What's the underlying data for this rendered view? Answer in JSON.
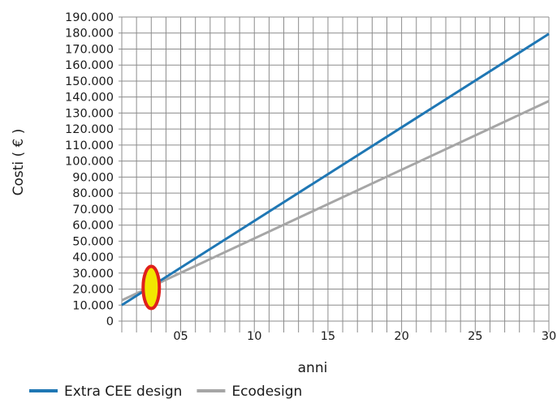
{
  "chart_data": {
    "type": "line",
    "title": "",
    "xlabel": "anni",
    "ylabel": "Costi ( € )",
    "xlim": [
      1,
      30
    ],
    "ylim": [
      0,
      190000
    ],
    "x_ticks": [
      {
        "value": 5,
        "label": "05"
      },
      {
        "value": 10,
        "label": "10"
      },
      {
        "value": 15,
        "label": "15"
      },
      {
        "value": 20,
        "label": "20"
      },
      {
        "value": 25,
        "label": "25"
      },
      {
        "value": 30,
        "label": "30"
      }
    ],
    "y_ticks": [
      {
        "value": 0,
        "label": "0"
      },
      {
        "value": 10000,
        "label": "10.000"
      },
      {
        "value": 20000,
        "label": "20.000"
      },
      {
        "value": 30000,
        "label": "30.000"
      },
      {
        "value": 40000,
        "label": "40.000"
      },
      {
        "value": 50000,
        "label": "50.000"
      },
      {
        "value": 60000,
        "label": "60.000"
      },
      {
        "value": 70000,
        "label": "70.000"
      },
      {
        "value": 80000,
        "label": "80.000"
      },
      {
        "value": 90000,
        "label": "90.000"
      },
      {
        "value": 100000,
        "label": "100.000"
      },
      {
        "value": 110000,
        "label": "110.000"
      },
      {
        "value": 120000,
        "label": "120.000"
      },
      {
        "value": 130000,
        "label": "130.000"
      },
      {
        "value": 140000,
        "label": "140.000"
      },
      {
        "value": 150000,
        "label": "150.000"
      },
      {
        "value": 160000,
        "label": "160.000"
      },
      {
        "value": 170000,
        "label": "170.000"
      },
      {
        "value": 180000,
        "label": "180.000"
      },
      {
        "value": 190000,
        "label": "190.000"
      }
    ],
    "grid": true,
    "grid_step_x": 1,
    "grid_step_y": 10000,
    "legend": "bottom",
    "series": [
      {
        "name": "Extra CEE design",
        "color": "#1f77b4",
        "x": [
          1,
          30
        ],
        "y": [
          10000,
          179500
        ]
      },
      {
        "name": "Ecodesign",
        "color": "#a6a6a6",
        "x": [
          1,
          30
        ],
        "y": [
          13000,
          137500
        ]
      }
    ],
    "annotation": {
      "shape": "ellipse",
      "x": 3,
      "y": 21000,
      "fill": "#f2e600",
      "stroke": "#e0201b"
    }
  }
}
